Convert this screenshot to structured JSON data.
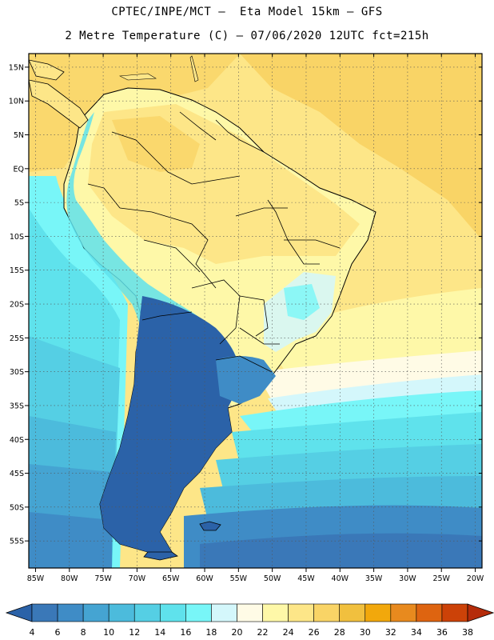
{
  "header": {
    "line1": "CPTEC/INPE/MCT –  Eta Model 15km – GFS",
    "line2": "2 Metre Temperature (C) – 07/06/2020 12UTC fct=215h"
  },
  "map": {
    "lon_range": [
      -86,
      -19
    ],
    "lat_range": [
      -59,
      17
    ],
    "lon_ticks": [
      {
        "value": -85,
        "label": "85W"
      },
      {
        "value": -80,
        "label": "80W"
      },
      {
        "value": -75,
        "label": "75W"
      },
      {
        "value": -70,
        "label": "70W"
      },
      {
        "value": -65,
        "label": "65W"
      },
      {
        "value": -60,
        "label": "60W"
      },
      {
        "value": -55,
        "label": "55W"
      },
      {
        "value": -50,
        "label": "50W"
      },
      {
        "value": -45,
        "label": "45W"
      },
      {
        "value": -40,
        "label": "40W"
      },
      {
        "value": -35,
        "label": "35W"
      },
      {
        "value": -30,
        "label": "30W"
      },
      {
        "value": -25,
        "label": "25W"
      },
      {
        "value": -20,
        "label": "20W"
      }
    ],
    "lat_ticks": [
      {
        "value": 15,
        "label": "15N"
      },
      {
        "value": 10,
        "label": "10N"
      },
      {
        "value": 5,
        "label": "5N"
      },
      {
        "value": 0,
        "label": "EQ"
      },
      {
        "value": -5,
        "label": "5S"
      },
      {
        "value": -10,
        "label": "10S"
      },
      {
        "value": -15,
        "label": "15S"
      },
      {
        "value": -20,
        "label": "20S"
      },
      {
        "value": -25,
        "label": "25S"
      },
      {
        "value": -30,
        "label": "30S"
      },
      {
        "value": -35,
        "label": "35S"
      },
      {
        "value": -40,
        "label": "40S"
      },
      {
        "value": -45,
        "label": "45S"
      },
      {
        "value": -50,
        "label": "50S"
      },
      {
        "value": -55,
        "label": "55S"
      }
    ],
    "gridlines": "dotted"
  },
  "colorbar": {
    "labels": [
      "4",
      "6",
      "8",
      "10",
      "12",
      "14",
      "16",
      "18",
      "20",
      "22",
      "24",
      "26",
      "28",
      "30",
      "32",
      "34",
      "36",
      "38"
    ],
    "colors": [
      "#2b62a8",
      "#3a78b8",
      "#3f8cc6",
      "#45a4d2",
      "#4cbbdc",
      "#55cfe4",
      "#5fe2ec",
      "#78f6f8",
      "#d4f7fb",
      "#fffbe6",
      "#fef8a8",
      "#fde688",
      "#f9d466",
      "#f1c03e",
      "#f2a80c",
      "#e88a1e",
      "#de6410",
      "#cc4208",
      "#b52c0a"
    ]
  },
  "fields": {
    "ocean_background": "#fde688"
  }
}
